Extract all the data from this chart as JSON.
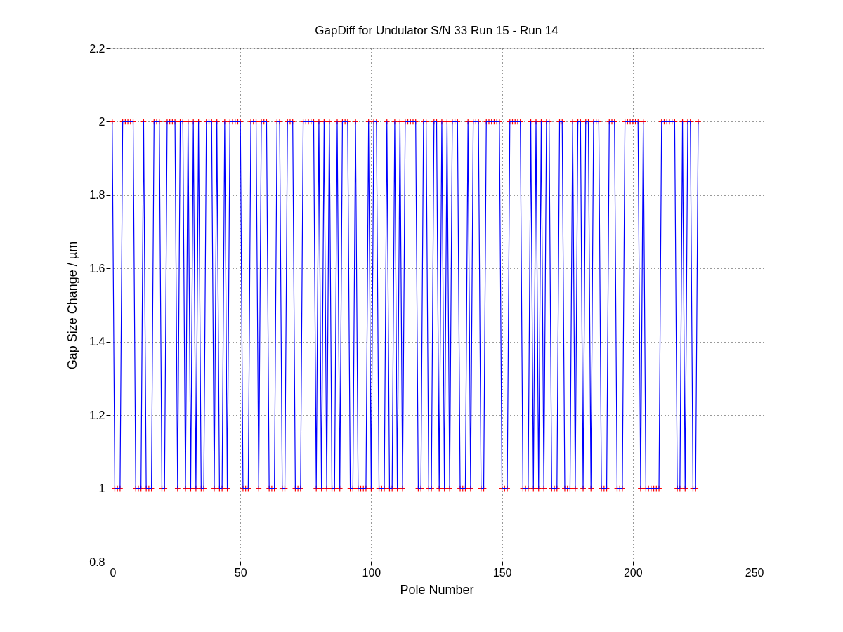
{
  "chart_data": {
    "type": "line",
    "title": "GapDiff  for Undulator S/N 33 Run 15 - Run 14",
    "xlabel": "Pole Number",
    "ylabel": "Gap Size Change / µm",
    "x": [
      1,
      2,
      3,
      4,
      5,
      6,
      7,
      8,
      9,
      10,
      11,
      12,
      13,
      14,
      15,
      16,
      17,
      18,
      19,
      20,
      21,
      22,
      23,
      24,
      25,
      26,
      27,
      28,
      29,
      30,
      31,
      32,
      33,
      34,
      35,
      36,
      37,
      38,
      39,
      40,
      41,
      42,
      43,
      44,
      45,
      46,
      47,
      48,
      49,
      50,
      51,
      52,
      53,
      54,
      55,
      56,
      57,
      58,
      59,
      60,
      61,
      62,
      63,
      64,
      65,
      66,
      67,
      68,
      69,
      70,
      71,
      72,
      73,
      74,
      75,
      76,
      77,
      78,
      79,
      80,
      81,
      82,
      83,
      84,
      85,
      86,
      87,
      88,
      89,
      90,
      91,
      92,
      93,
      94,
      95,
      96,
      97,
      98,
      99,
      100,
      101,
      102,
      103,
      104,
      105,
      106,
      107,
      108,
      109,
      110,
      111,
      112,
      113,
      114,
      115,
      116,
      117,
      118,
      119,
      120,
      121,
      122,
      123,
      124,
      125,
      126,
      127,
      128,
      129,
      130,
      131,
      132,
      133,
      134,
      135,
      136,
      137,
      138,
      139,
      140,
      141,
      142,
      143,
      144,
      145,
      146,
      147,
      148,
      149,
      150,
      151,
      152,
      153,
      154,
      155,
      156,
      157,
      158,
      159,
      160,
      161,
      162,
      163,
      164,
      165,
      166,
      167,
      168,
      169,
      170,
      171,
      172,
      173,
      174,
      175,
      176,
      177,
      178,
      179,
      180,
      181,
      182,
      183,
      184,
      185,
      186,
      187,
      188,
      189,
      190,
      191,
      192,
      193,
      194,
      195,
      196,
      197,
      198,
      199,
      200,
      201,
      202,
      203,
      204,
      205,
      206,
      207,
      208,
      209,
      210,
      211,
      212,
      213,
      214,
      215,
      216,
      217,
      218,
      219,
      220,
      221,
      222,
      223,
      224,
      225
    ],
    "series": [
      {
        "color": "#0000ff",
        "marker": "none",
        "values": [
          2,
          1,
          1,
          1,
          2,
          2,
          2,
          2,
          2,
          1,
          1,
          1,
          2,
          1,
          1,
          1,
          2,
          2,
          2,
          1,
          1,
          2,
          2,
          2,
          2,
          1,
          2,
          2,
          1,
          2,
          1,
          2,
          1,
          2,
          1,
          1,
          2,
          2,
          2,
          1,
          2,
          1,
          1,
          2,
          1,
          2,
          2,
          2,
          2,
          2,
          1,
          1,
          1,
          2,
          2,
          2,
          1,
          2,
          2,
          2,
          1,
          1,
          1,
          2,
          2,
          1,
          1,
          2,
          2,
          2,
          1,
          1,
          1,
          2,
          2,
          2,
          2,
          2,
          1,
          2,
          1,
          2,
          1,
          2,
          1,
          1,
          2,
          1,
          2,
          2,
          2,
          1,
          1,
          2,
          1,
          1,
          1,
          1,
          2,
          1,
          2,
          2,
          1,
          1,
          1,
          2,
          1,
          1,
          2,
          1,
          2,
          1,
          2,
          2,
          2,
          2,
          2,
          1,
          1,
          2,
          2,
          1,
          1,
          2,
          2,
          1,
          2,
          1,
          2,
          1,
          2,
          2,
          2,
          1,
          1,
          1,
          2,
          1,
          2,
          2,
          2,
          1,
          1,
          2,
          2,
          2,
          2,
          2,
          2,
          1,
          1,
          1,
          2,
          2,
          2,
          2,
          2,
          1,
          1,
          1,
          2,
          1,
          2,
          1,
          2,
          1,
          2,
          2,
          1,
          1,
          1,
          2,
          2,
          1,
          1,
          1,
          2,
          1,
          2,
          2,
          1,
          2,
          2,
          1,
          2,
          2,
          2,
          1,
          1,
          1,
          2,
          2,
          2,
          1,
          1,
          1,
          2,
          2,
          2,
          2,
          2,
          2,
          1,
          2,
          1,
          1,
          1,
          1,
          1,
          1,
          2,
          2,
          2,
          2,
          2,
          2,
          1,
          1,
          2,
          1,
          2,
          2,
          1,
          1,
          2
        ]
      },
      {
        "type": "scatter",
        "color": "#ff0000",
        "marker": "cross",
        "values": [
          2,
          1,
          1,
          1,
          2,
          2,
          2,
          2,
          2,
          1,
          1,
          1,
          2,
          1,
          1,
          1,
          2,
          2,
          2,
          1,
          1,
          2,
          2,
          2,
          2,
          1,
          2,
          2,
          1,
          2,
          1,
          2,
          1,
          2,
          1,
          1,
          2,
          2,
          2,
          1,
          2,
          1,
          1,
          2,
          1,
          2,
          2,
          2,
          2,
          2,
          1,
          1,
          1,
          2,
          2,
          2,
          1,
          2,
          2,
          2,
          1,
          1,
          1,
          2,
          2,
          1,
          1,
          2,
          2,
          2,
          1,
          1,
          1,
          2,
          2,
          2,
          2,
          2,
          1,
          2,
          1,
          2,
          1,
          2,
          1,
          1,
          2,
          1,
          2,
          2,
          2,
          1,
          1,
          2,
          1,
          1,
          1,
          1,
          2,
          1,
          2,
          2,
          1,
          1,
          1,
          2,
          1,
          1,
          2,
          1,
          2,
          1,
          2,
          2,
          2,
          2,
          2,
          1,
          1,
          2,
          2,
          1,
          1,
          2,
          2,
          1,
          2,
          1,
          2,
          1,
          2,
          2,
          2,
          1,
          1,
          1,
          2,
          1,
          2,
          2,
          2,
          1,
          1,
          2,
          2,
          2,
          2,
          2,
          2,
          1,
          1,
          1,
          2,
          2,
          2,
          2,
          2,
          1,
          1,
          1,
          2,
          1,
          2,
          1,
          2,
          1,
          2,
          2,
          1,
          1,
          1,
          2,
          2,
          1,
          1,
          1,
          2,
          1,
          2,
          2,
          1,
          2,
          2,
          1,
          2,
          2,
          2,
          1,
          1,
          1,
          2,
          2,
          2,
          1,
          1,
          1,
          2,
          2,
          2,
          2,
          2,
          2,
          1,
          2,
          1,
          1,
          1,
          1,
          1,
          1,
          2,
          2,
          2,
          2,
          2,
          2,
          1,
          1,
          2,
          1,
          2,
          2,
          1,
          1,
          2
        ]
      }
    ],
    "xlim": [
      0,
      250
    ],
    "xticks": [
      0,
      50,
      100,
      150,
      200,
      250
    ],
    "ylim": [
      0.8,
      2.2
    ],
    "yticks": [
      0.8,
      1,
      1.2,
      1.4,
      1.6,
      1.8,
      2,
      2.2
    ],
    "grid": true
  }
}
